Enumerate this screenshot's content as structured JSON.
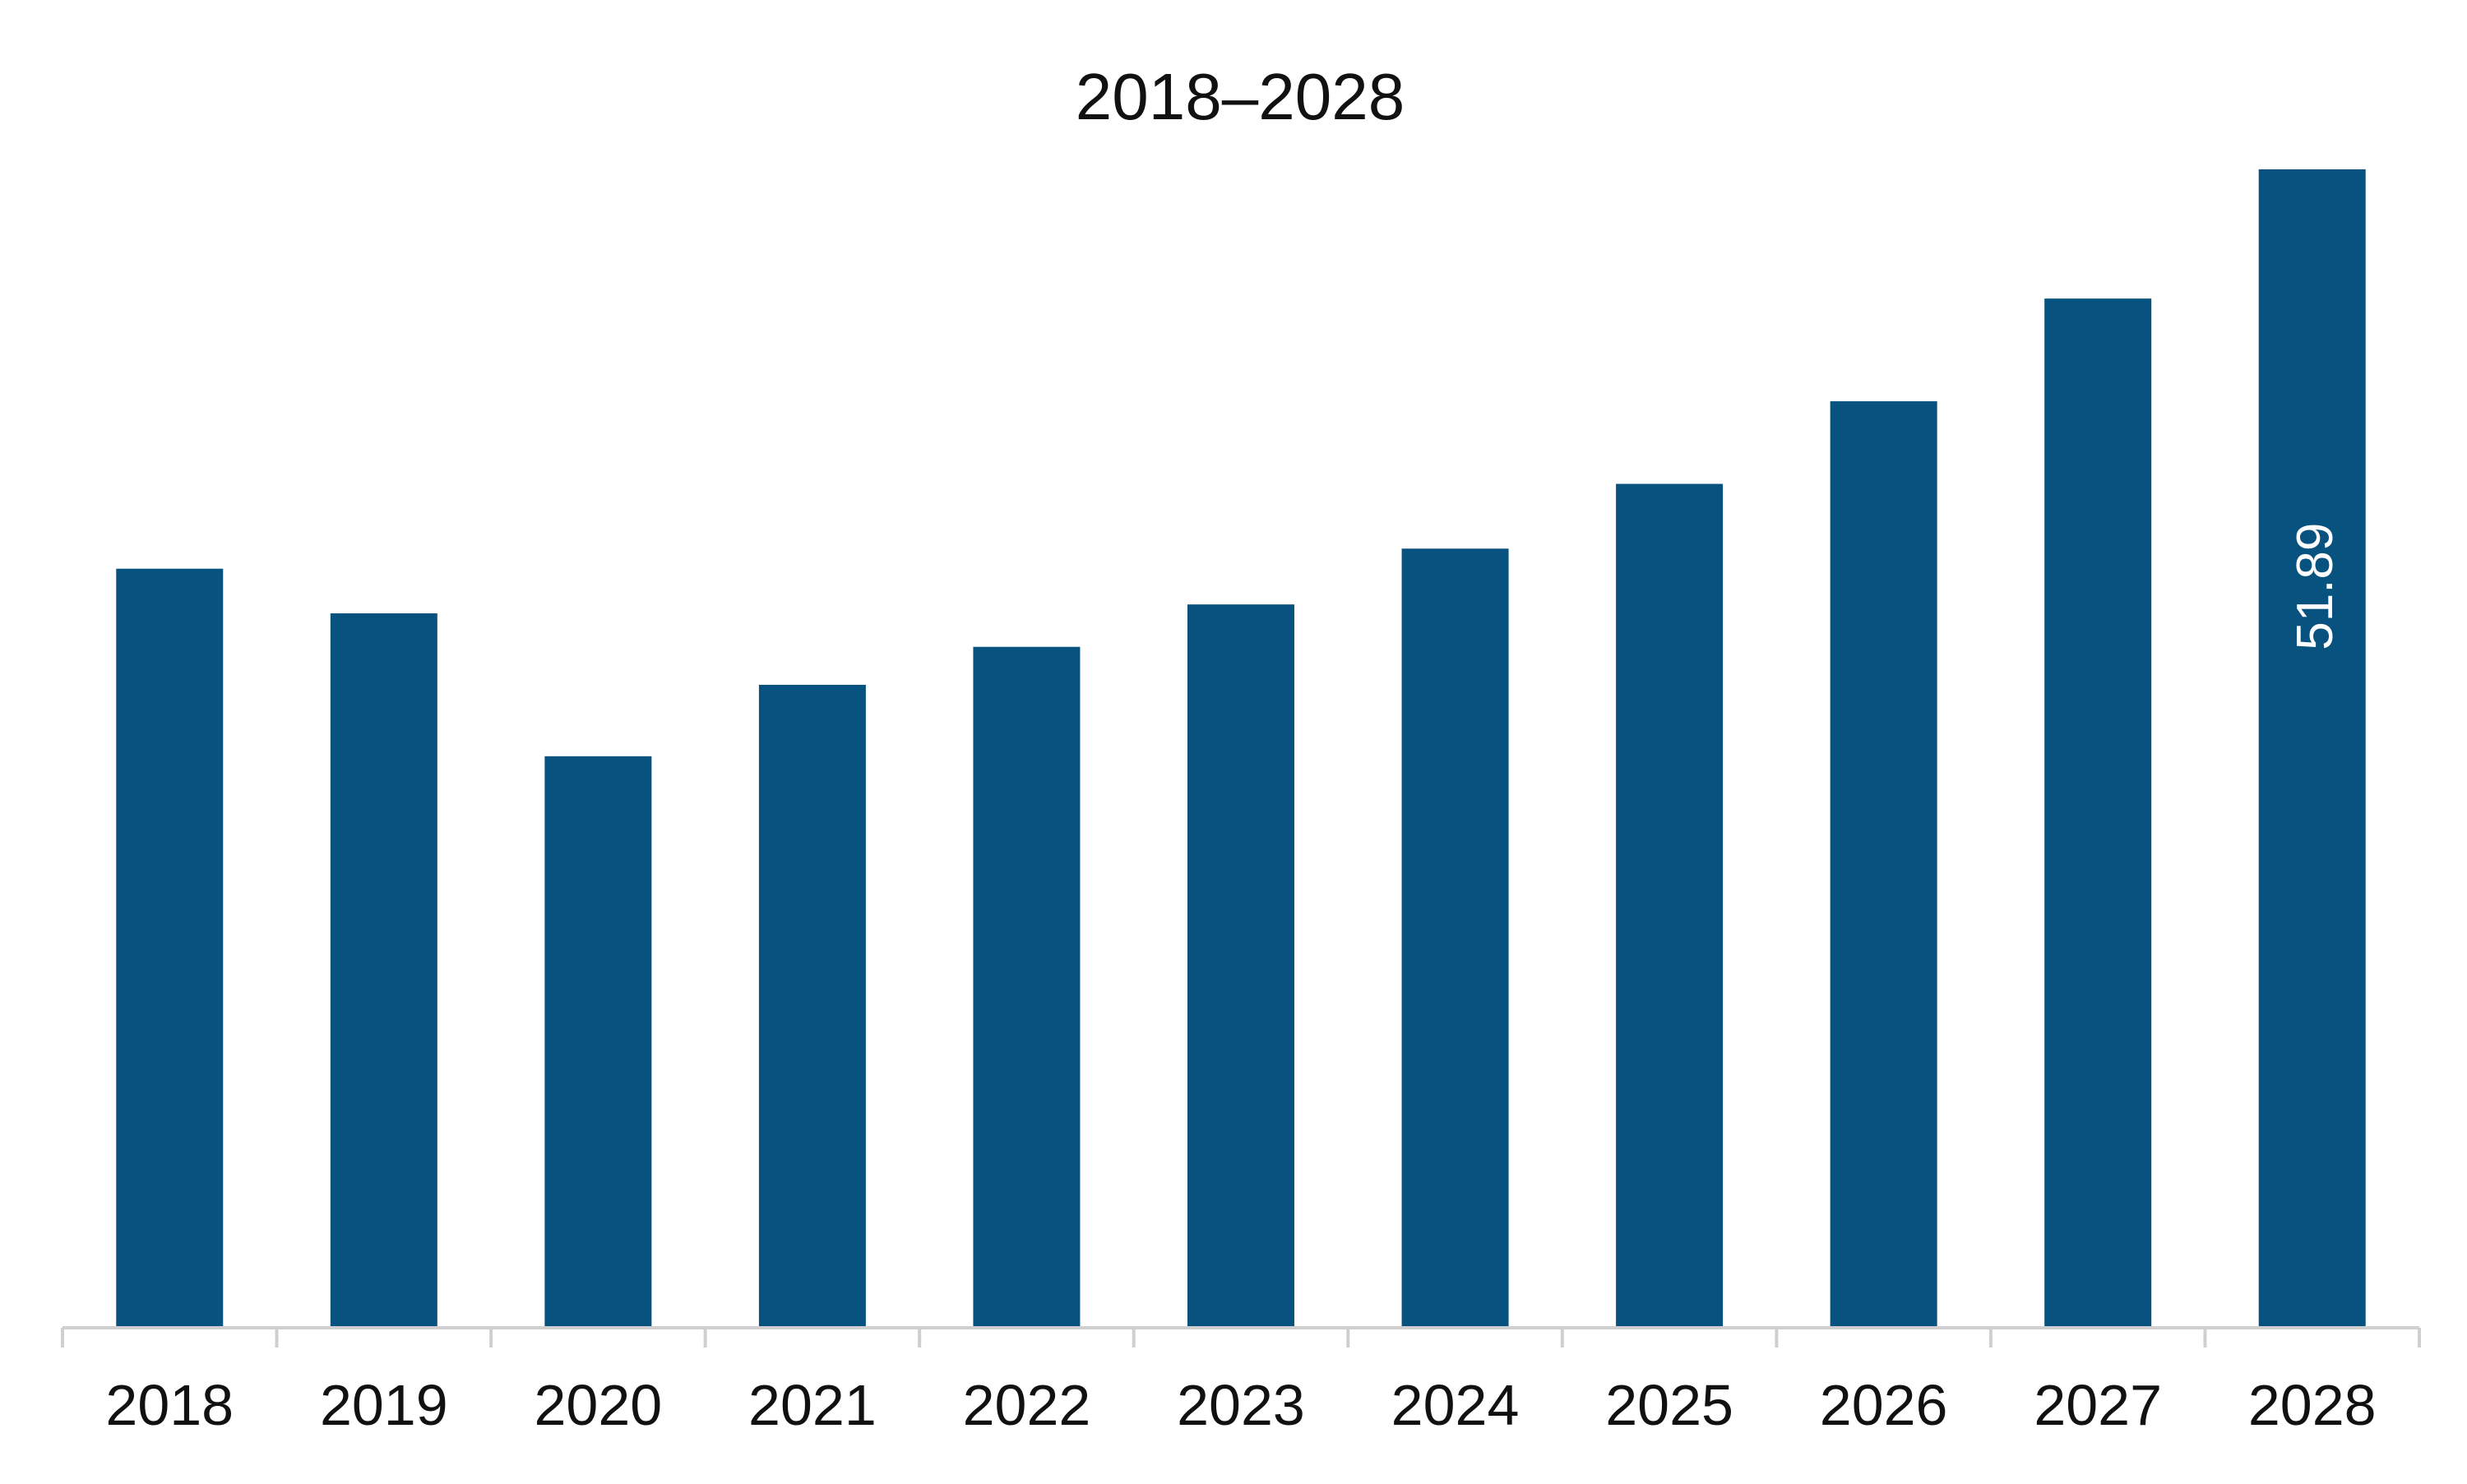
{
  "chart_data": {
    "type": "bar",
    "title": "2018–2028",
    "xlabel": "",
    "ylabel": "",
    "categories": [
      "2018",
      "2019",
      "2020",
      "2021",
      "2022",
      "2023",
      "2024",
      "2025",
      "2026",
      "2027",
      "2028"
    ],
    "series": [
      {
        "values": [
          34.0,
          32.0,
          25.6,
          28.8,
          30.5,
          32.4,
          34.9,
          37.8,
          41.5,
          46.1,
          51.89
        ],
        "color": "#08527f"
      }
    ],
    "data_labels": [
      {
        "category": "2028",
        "text": "51.89",
        "orientation": "vertical"
      }
    ],
    "ylim": [
      0,
      58
    ],
    "grid": false,
    "legend": "none",
    "colors": {
      "bar": "#08527f",
      "axis": "#cfcfcf",
      "text": "#111111",
      "label": "#ffffff"
    }
  }
}
